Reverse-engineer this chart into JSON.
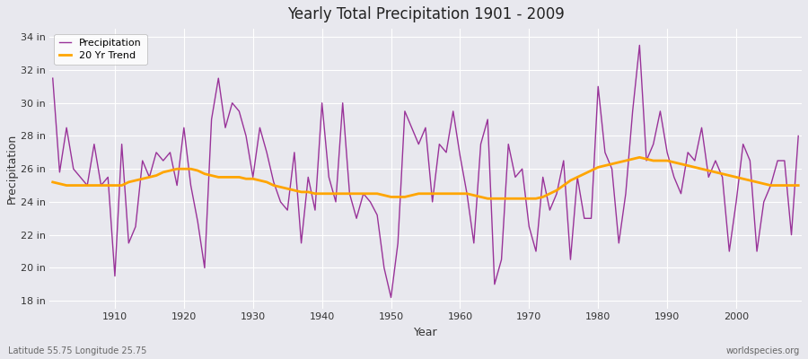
{
  "title": "Yearly Total Precipitation 1901 - 2009",
  "xlabel": "Year",
  "ylabel": "Precipitation",
  "subtitle_left": "Latitude 55.75 Longitude 25.75",
  "subtitle_right": "worldspecies.org",
  "years": [
    1901,
    1902,
    1903,
    1904,
    1905,
    1906,
    1907,
    1908,
    1909,
    1910,
    1911,
    1912,
    1913,
    1914,
    1915,
    1916,
    1917,
    1918,
    1919,
    1920,
    1921,
    1922,
    1923,
    1924,
    1925,
    1926,
    1927,
    1928,
    1929,
    1930,
    1931,
    1932,
    1933,
    1934,
    1935,
    1936,
    1937,
    1938,
    1939,
    1940,
    1941,
    1942,
    1943,
    1944,
    1945,
    1946,
    1947,
    1948,
    1949,
    1950,
    1951,
    1952,
    1953,
    1954,
    1955,
    1956,
    1957,
    1958,
    1959,
    1960,
    1961,
    1962,
    1963,
    1964,
    1965,
    1966,
    1967,
    1968,
    1969,
    1970,
    1971,
    1972,
    1973,
    1974,
    1975,
    1976,
    1977,
    1978,
    1979,
    1980,
    1981,
    1982,
    1983,
    1984,
    1985,
    1986,
    1987,
    1988,
    1989,
    1990,
    1991,
    1992,
    1993,
    1994,
    1995,
    1996,
    1997,
    1998,
    1999,
    2000,
    2001,
    2002,
    2003,
    2004,
    2005,
    2006,
    2007,
    2008,
    2009
  ],
  "precip": [
    31.5,
    25.8,
    28.5,
    26.0,
    25.5,
    25.0,
    27.5,
    25.0,
    25.5,
    19.5,
    27.5,
    21.5,
    22.5,
    26.5,
    25.5,
    27.0,
    26.5,
    27.0,
    25.0,
    28.5,
    25.0,
    22.8,
    20.0,
    29.0,
    31.5,
    28.5,
    30.0,
    29.5,
    28.0,
    25.5,
    28.5,
    27.0,
    25.2,
    24.0,
    23.5,
    27.0,
    21.5,
    25.5,
    23.5,
    30.0,
    25.5,
    24.0,
    30.0,
    24.5,
    23.0,
    24.5,
    24.0,
    23.2,
    20.0,
    18.2,
    21.5,
    29.5,
    28.5,
    27.5,
    28.5,
    24.0,
    27.5,
    27.0,
    29.5,
    26.8,
    24.5,
    21.5,
    27.5,
    29.0,
    19.0,
    20.5,
    27.5,
    25.5,
    26.0,
    22.5,
    21.0,
    25.5,
    23.5,
    24.5,
    26.5,
    20.5,
    25.5,
    23.0,
    23.0,
    31.0,
    27.0,
    26.0,
    21.5,
    24.5,
    29.5,
    33.5,
    26.5,
    27.5,
    29.5,
    27.0,
    25.5,
    24.5,
    27.0,
    26.5,
    28.5,
    25.5,
    26.5,
    25.5,
    21.0,
    24.0,
    27.5,
    26.5,
    21.0,
    24.0,
    25.0,
    26.5,
    26.5,
    22.0,
    28.0
  ],
  "trend": [
    25.2,
    25.1,
    25.0,
    25.0,
    25.0,
    25.0,
    25.0,
    25.0,
    25.0,
    25.0,
    25.0,
    25.2,
    25.3,
    25.4,
    25.5,
    25.6,
    25.8,
    25.9,
    26.0,
    26.0,
    26.0,
    25.9,
    25.7,
    25.6,
    25.5,
    25.5,
    25.5,
    25.5,
    25.4,
    25.4,
    25.3,
    25.2,
    25.0,
    24.9,
    24.8,
    24.7,
    24.6,
    24.6,
    24.5,
    24.5,
    24.5,
    24.5,
    24.5,
    24.5,
    24.5,
    24.5,
    24.5,
    24.5,
    24.4,
    24.3,
    24.3,
    24.3,
    24.4,
    24.5,
    24.5,
    24.5,
    24.5,
    24.5,
    24.5,
    24.5,
    24.5,
    24.4,
    24.3,
    24.2,
    24.2,
    24.2,
    24.2,
    24.2,
    24.2,
    24.2,
    24.2,
    24.3,
    24.5,
    24.7,
    25.0,
    25.3,
    25.5,
    25.7,
    25.9,
    26.1,
    26.2,
    26.3,
    26.4,
    26.5,
    26.6,
    26.7,
    26.6,
    26.5,
    26.5,
    26.5,
    26.4,
    26.3,
    26.2,
    26.1,
    26.0,
    25.9,
    25.8,
    25.7,
    25.6,
    25.5,
    25.4,
    25.3,
    25.2,
    25.1,
    25.0,
    25.0,
    25.0,
    25.0,
    25.0
  ],
  "precip_color": "#993399",
  "trend_color": "#FFA500",
  "bg_color": "#e8e8ee",
  "plot_bg_color": "#e8e8ee",
  "grid_color": "#ffffff",
  "ylim": [
    17.5,
    34.5
  ],
  "yticks": [
    18,
    20,
    22,
    24,
    26,
    28,
    30,
    32,
    34
  ],
  "ytick_labels": [
    "18 in",
    "20 in",
    "22 in",
    "24 in",
    "26 in",
    "28 in",
    "30 in",
    "32 in",
    "34 in"
  ],
  "xticks": [
    1910,
    1920,
    1930,
    1940,
    1950,
    1960,
    1970,
    1980,
    1990,
    2000
  ],
  "xlim": [
    1900.5,
    2009.5
  ],
  "figsize": [
    9.0,
    4.0
  ],
  "dpi": 100
}
